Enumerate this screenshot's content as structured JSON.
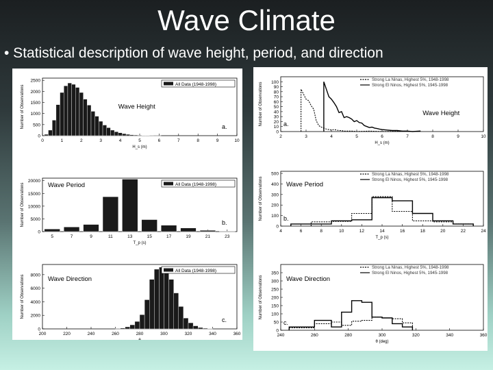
{
  "slide": {
    "title": "Wave Climate",
    "bullet": "• Statistical description of wave height, period, and direction"
  },
  "chart_data": [
    {
      "type": "bar",
      "id": "lh",
      "legend": [
        "All Data (1948-1998)"
      ],
      "label": "Wave Height",
      "panel_letter": "a.",
      "ylabel": "Number of Observations",
      "xlabel": "H_s (m)",
      "xlim": [
        0,
        10
      ],
      "ylim": [
        0,
        2600
      ],
      "xticks": [
        0,
        1,
        2,
        3,
        4,
        5,
        6,
        7,
        8,
        9,
        10
      ],
      "yticks": [
        0,
        500,
        1000,
        1500,
        2000,
        2500
      ],
      "bin_width": 0.2,
      "x": [
        0.2,
        0.4,
        0.6,
        0.8,
        1.0,
        1.2,
        1.4,
        1.6,
        1.8,
        2.0,
        2.2,
        2.4,
        2.6,
        2.8,
        3.0,
        3.2,
        3.4,
        3.6,
        3.8,
        4.0,
        4.2,
        4.4,
        4.6,
        4.8,
        5.0,
        5.2,
        5.4,
        5.6,
        5.8,
        6.0
      ],
      "values": [
        60,
        250,
        700,
        1400,
        1950,
        2250,
        2380,
        2320,
        2180,
        1950,
        1650,
        1380,
        1100,
        880,
        650,
        480,
        360,
        250,
        180,
        130,
        90,
        60,
        40,
        30,
        20,
        12,
        8,
        5,
        3,
        2
      ]
    },
    {
      "type": "bar",
      "id": "lp",
      "legend": [
        "All Data (1948-1998)"
      ],
      "label": "Wave Period",
      "panel_letter": "b.",
      "ylabel": "Number of Observations",
      "xlabel": "T_p (s)",
      "xlim": [
        4,
        24
      ],
      "ylim": [
        0,
        21000
      ],
      "xticks": [
        5,
        7,
        9,
        11,
        13,
        15,
        17,
        19,
        21,
        23
      ],
      "yticks": [
        0,
        5000,
        10000,
        15000,
        20000
      ],
      "bin_width": 1.6,
      "x": [
        5,
        7,
        9,
        11,
        13,
        15,
        17,
        19,
        21,
        23
      ],
      "values": [
        1000,
        1800,
        2800,
        13700,
        20600,
        4700,
        2500,
        1400,
        500,
        150
      ]
    },
    {
      "type": "bar",
      "id": "ld",
      "legend": [
        "All Data (1948-1998)"
      ],
      "label": "Wave Direction",
      "panel_letter": "c.",
      "ylabel": "Number of Observations",
      "xlabel": "θ",
      "xlim": [
        200,
        360
      ],
      "ylim": [
        0,
        9500
      ],
      "xticks": [
        200,
        220,
        240,
        260,
        280,
        300,
        320,
        340,
        360
      ],
      "yticks": [
        0,
        2000,
        4000,
        6000,
        8000
      ],
      "bin_width": 4,
      "x": [
        262,
        266,
        270,
        274,
        278,
        282,
        286,
        290,
        294,
        298,
        302,
        306,
        310,
        314,
        318,
        322,
        326,
        330,
        334,
        338
      ],
      "values": [
        60,
        120,
        300,
        600,
        1100,
        2100,
        4300,
        7300,
        8800,
        9100,
        8300,
        7300,
        5300,
        3300,
        1600,
        900,
        450,
        200,
        100,
        50
      ]
    },
    {
      "type": "line",
      "id": "rh",
      "legend": [
        "Strong La Ninas, Highest 5%, 1948-1998",
        "Strong El Ninos, Highest 5%, 1945-1998"
      ],
      "label": "Wave Height",
      "panel_letter": "a.",
      "ylabel": "Number of Observations",
      "xlabel": "H_s (m)",
      "xlim": [
        2,
        10
      ],
      "ylim": [
        0,
        110
      ],
      "xticks": [
        2,
        3,
        4,
        5,
        6,
        7,
        8,
        9,
        10
      ],
      "yticks": [
        0,
        10,
        20,
        30,
        40,
        50,
        60,
        70,
        80,
        90,
        100
      ],
      "series": [
        {
          "name": "Strong La Ninas, Highest 5%, 1948-1998",
          "dashed": true,
          "x": [
            2.8,
            2.8,
            2.9,
            3.0,
            3.1,
            3.2,
            3.3,
            3.4,
            3.5,
            3.6,
            3.7,
            3.8,
            3.9,
            4.0,
            4.1,
            4.2,
            4.3,
            4.4,
            4.5,
            4.6,
            4.8,
            5.0,
            5.5,
            6.0,
            7.0,
            7.0
          ],
          "y": [
            0,
            85,
            75,
            65,
            62,
            52,
            45,
            22,
            12,
            9,
            7,
            5,
            4,
            3,
            4,
            3,
            2,
            2,
            1,
            1,
            1,
            0,
            1,
            0,
            1,
            0
          ]
        },
        {
          "name": "Strong El Ninos, Highest 5%, 1945-1998",
          "dashed": false,
          "x": [
            3.7,
            3.7,
            3.8,
            3.9,
            4.0,
            4.1,
            4.2,
            4.3,
            4.4,
            4.5,
            4.6,
            4.7,
            4.8,
            4.9,
            5.0,
            5.1,
            5.2,
            5.3,
            5.4,
            5.5,
            5.6,
            5.7,
            5.8,
            5.9,
            6.0,
            6.2,
            6.4,
            6.6,
            6.8,
            7.0,
            7.2,
            7.5,
            7.5
          ],
          "y": [
            0,
            100,
            85,
            70,
            65,
            58,
            50,
            38,
            40,
            28,
            30,
            28,
            25,
            20,
            22,
            18,
            17,
            12,
            10,
            8,
            9,
            7,
            6,
            5,
            4,
            3,
            2,
            2,
            1,
            1,
            0,
            1,
            0
          ]
        }
      ]
    },
    {
      "type": "line",
      "id": "rp",
      "legend": [
        "Strong La Ninas, Highest 5%, 1948-1998",
        "Strong El Ninos, Highest 5%, 1945-1998"
      ],
      "label": "Wave Period",
      "panel_letter": "b.",
      "ylabel": "Number of Observations",
      "xlabel": "T_p (s)",
      "xlim": [
        4,
        24
      ],
      "ylim": [
        0,
        520
      ],
      "xticks": [
        4,
        6,
        8,
        10,
        12,
        14,
        16,
        18,
        20,
        22,
        24
      ],
      "yticks": [
        0,
        100,
        200,
        300,
        400,
        500
      ],
      "series": [
        {
          "name": "Strong La Ninas, Highest 5%, 1948-1998",
          "dashed": true,
          "x": [
            7,
            7,
            9,
            9,
            11,
            11,
            13,
            13,
            15,
            15,
            17,
            17,
            19,
            19,
            21,
            21,
            23,
            23
          ],
          "y": [
            0,
            40,
            40,
            45,
            45,
            120,
            120,
            280,
            280,
            140,
            140,
            50,
            50,
            40,
            40,
            20,
            20,
            0
          ]
        },
        {
          "name": "Strong El Ninos, Highest 5%, 1945-1998",
          "dashed": false,
          "x": [
            5,
            5,
            9,
            9,
            11,
            11,
            13,
            13,
            15,
            15,
            17,
            17,
            19,
            19,
            21,
            21,
            23,
            23
          ],
          "y": [
            0,
            20,
            20,
            50,
            50,
            60,
            60,
            270,
            270,
            240,
            240,
            120,
            120,
            50,
            50,
            20,
            20,
            0
          ]
        }
      ]
    },
    {
      "type": "line",
      "id": "rd",
      "legend": [
        "Strong La Ninas, Highest 5%, 1948-1998",
        "Strong El Ninos, Highest 5%, 1945-1998"
      ],
      "label": "Wave Direction",
      "panel_letter": "c.",
      "ylabel": "Number of Observations",
      "xlabel": "θ (deg)",
      "xlim": [
        240,
        360
      ],
      "ylim": [
        0,
        400
      ],
      "xticks": [
        240,
        260,
        280,
        300,
        320,
        340,
        360
      ],
      "yticks": [
        0,
        50,
        100,
        150,
        200,
        250,
        300,
        350
      ],
      "series": [
        {
          "name": "Strong La Ninas, Highest 5%, 1948-1998",
          "dashed": true,
          "x": [
            245,
            245,
            260,
            260,
            270,
            270,
            276,
            276,
            282,
            282,
            288,
            288,
            294,
            294,
            300,
            300,
            306,
            306,
            312,
            312,
            318,
            318
          ],
          "y": [
            0,
            15,
            15,
            40,
            40,
            50,
            50,
            30,
            30,
            55,
            55,
            60,
            60,
            80,
            80,
            75,
            75,
            70,
            70,
            45,
            45,
            0
          ]
        },
        {
          "name": "Strong El Ninos, Highest 5%, 1945-1998",
          "dashed": false,
          "x": [
            245,
            245,
            260,
            260,
            270,
            270,
            276,
            276,
            282,
            282,
            288,
            288,
            294,
            294,
            300,
            300,
            306,
            306,
            312,
            312,
            318,
            318
          ],
          "y": [
            0,
            20,
            20,
            60,
            60,
            20,
            20,
            110,
            110,
            180,
            180,
            170,
            170,
            80,
            80,
            75,
            75,
            40,
            40,
            20,
            20,
            0
          ]
        }
      ]
    }
  ]
}
